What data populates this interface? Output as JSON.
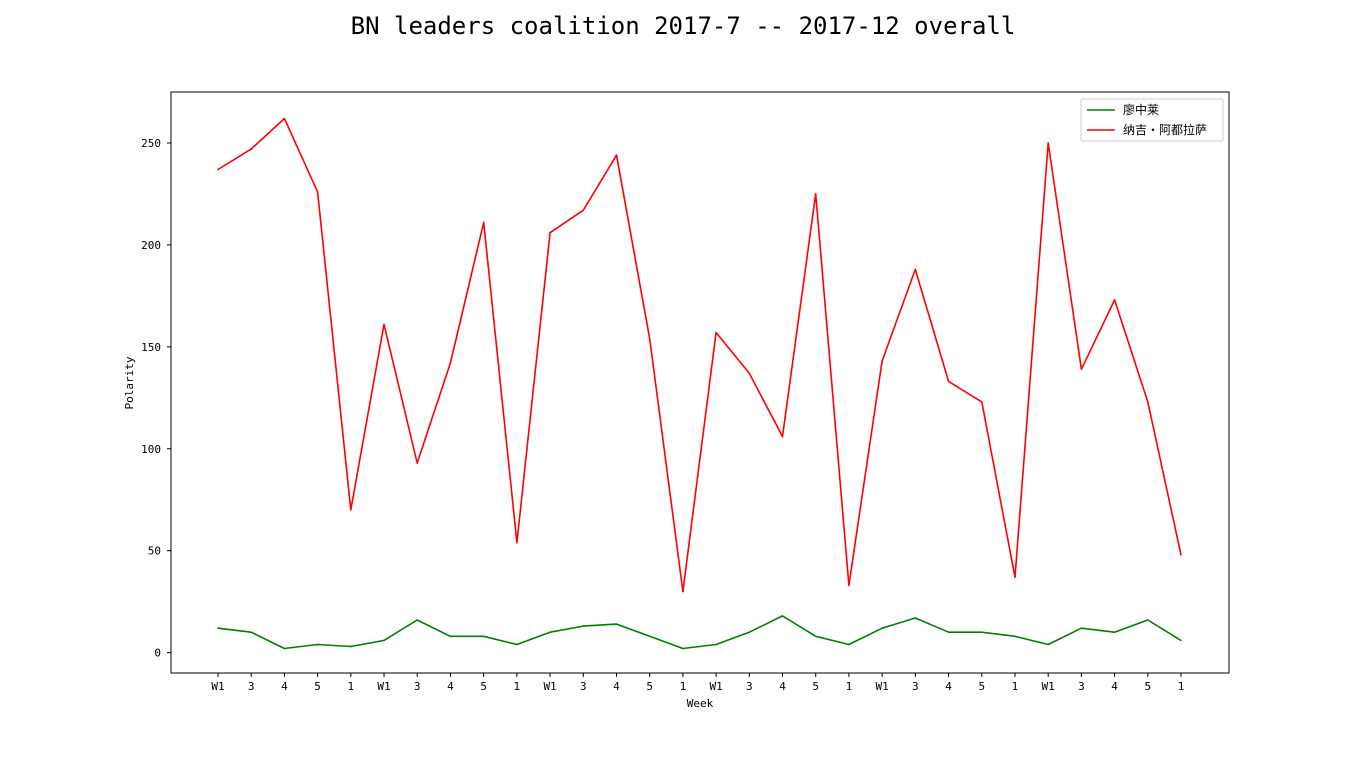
{
  "chart_data": {
    "type": "line",
    "title": "BN leaders coalition 2017-7 -- 2017-12 overall",
    "xlabel": "Week",
    "ylabel": "Polarity",
    "categories": [
      "W1",
      "3",
      "4",
      "5",
      "1",
      "W1",
      "3",
      "4",
      "5",
      "1",
      "W1",
      "3",
      "4",
      "5",
      "1",
      "W1",
      "3",
      "4",
      "5",
      "1",
      "W1",
      "3",
      "4",
      "5",
      "1",
      "W1",
      "3",
      "4",
      "5",
      "1"
    ],
    "ylim": [
      -10,
      275
    ],
    "yticks": [
      0,
      50,
      100,
      150,
      200,
      250
    ],
    "grid": false,
    "legend_position": "top-right",
    "series": [
      {
        "name": "廖中莱",
        "color": "#008000",
        "values": [
          12,
          10,
          2,
          4,
          3,
          6,
          16,
          8,
          8,
          4,
          10,
          13,
          14,
          8,
          2,
          4,
          10,
          18,
          8,
          4,
          12,
          17,
          10,
          10,
          8,
          4,
          12,
          10,
          16,
          6
        ]
      },
      {
        "name": "纳吉・阿都拉萨",
        "color": "#ff0000",
        "values": [
          237,
          247,
          262,
          226,
          70,
          161,
          93,
          142,
          211,
          54,
          206,
          217,
          244,
          154,
          30,
          157,
          137,
          106,
          225,
          33,
          143,
          188,
          133,
          123,
          37,
          250,
          139,
          173,
          123,
          48
        ]
      }
    ]
  }
}
